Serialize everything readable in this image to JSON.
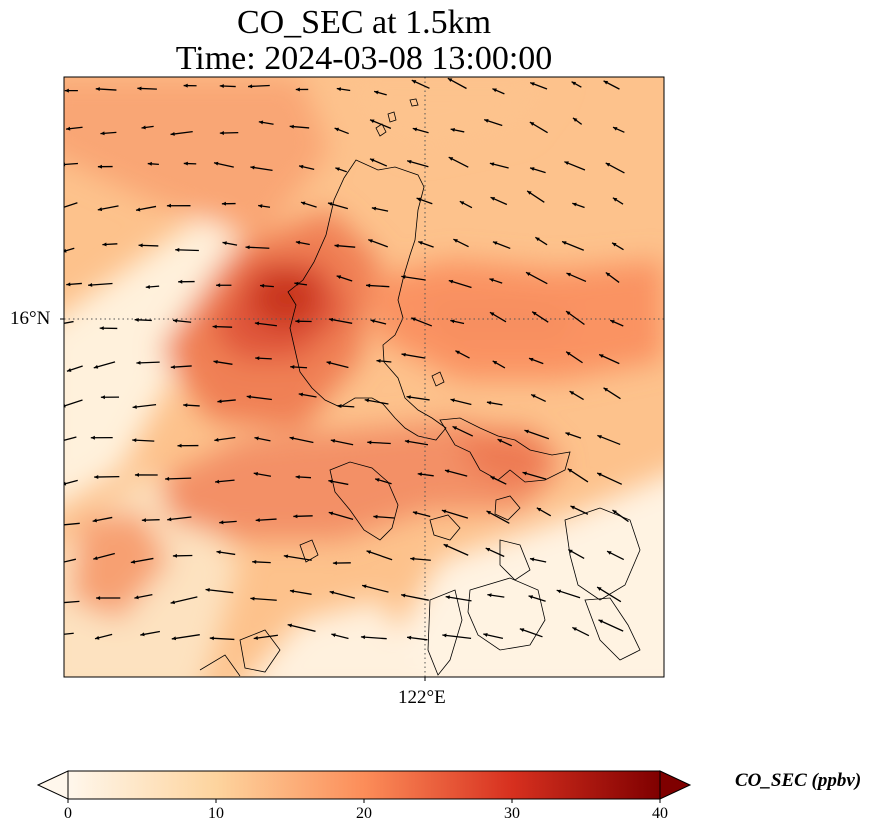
{
  "title": {
    "line1": "CO_SEC at 1.5km",
    "line2": "Time: 2024-03-08 13:00:00"
  },
  "map": {
    "lat_tick": "16°N",
    "lon_tick": "122°E",
    "gridlines": "dotted",
    "coastlines": true,
    "wind_vectors": true,
    "field": "CO_SEC",
    "colormap": "OrRd",
    "colors": {
      "low": "#fff7ec",
      "mid_low": "#fdd49e",
      "mid": "#fc8d59",
      "high": "#d7301f",
      "max": "#7f0000"
    }
  },
  "colorbar": {
    "label": "CO_SEC (ppbv)",
    "ticks": [
      "0",
      "10",
      "20",
      "30",
      "40"
    ],
    "min": 0,
    "max": 40,
    "extend": "both"
  }
}
